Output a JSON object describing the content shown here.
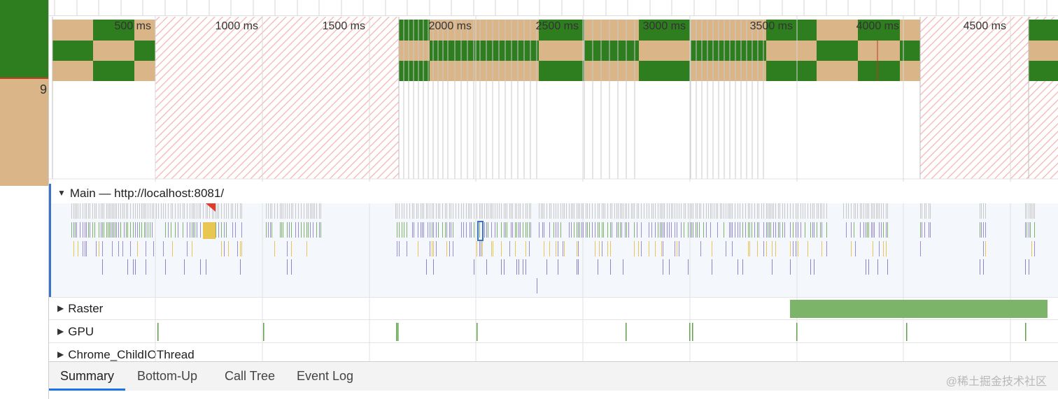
{
  "left_panel": {
    "number": "9"
  },
  "timeline": {
    "ticks": [
      {
        "label": "500 ms",
        "ms": 500
      },
      {
        "label": "1000 ms",
        "ms": 1000
      },
      {
        "label": "1500 ms",
        "ms": 1500
      },
      {
        "label": "2000 ms",
        "ms": 2000
      },
      {
        "label": "2500 ms",
        "ms": 2500
      },
      {
        "label": "3000 ms",
        "ms": 3000
      },
      {
        "label": "3500 ms",
        "ms": 3500
      },
      {
        "label": "4000 ms",
        "ms": 4000
      },
      {
        "label": "4500 ms",
        "ms": 4500
      }
    ]
  },
  "tracks": {
    "main": {
      "label": "Main — http://localhost:8081/",
      "expanded": true
    },
    "raster": {
      "label": "Raster",
      "expanded": false
    },
    "gpu": {
      "label": "GPU",
      "expanded": false
    },
    "childio": {
      "label": "Chrome_ChildIOThread",
      "expanded": false
    }
  },
  "tabs": [
    {
      "label": "Summary",
      "active": true
    },
    {
      "label": "Bottom-Up",
      "active": false
    },
    {
      "label": "Call Tree",
      "active": false
    },
    {
      "label": "Event Log",
      "active": false
    }
  ],
  "watermark": "@稀土掘金技术社区",
  "colors": {
    "frame_green": "#2e7d1f",
    "frame_tan": "#d9b588",
    "idle_hatch": "#f4a7a7",
    "raster_green": "#7cb46a",
    "selection_blue": "#3b73c9"
  }
}
